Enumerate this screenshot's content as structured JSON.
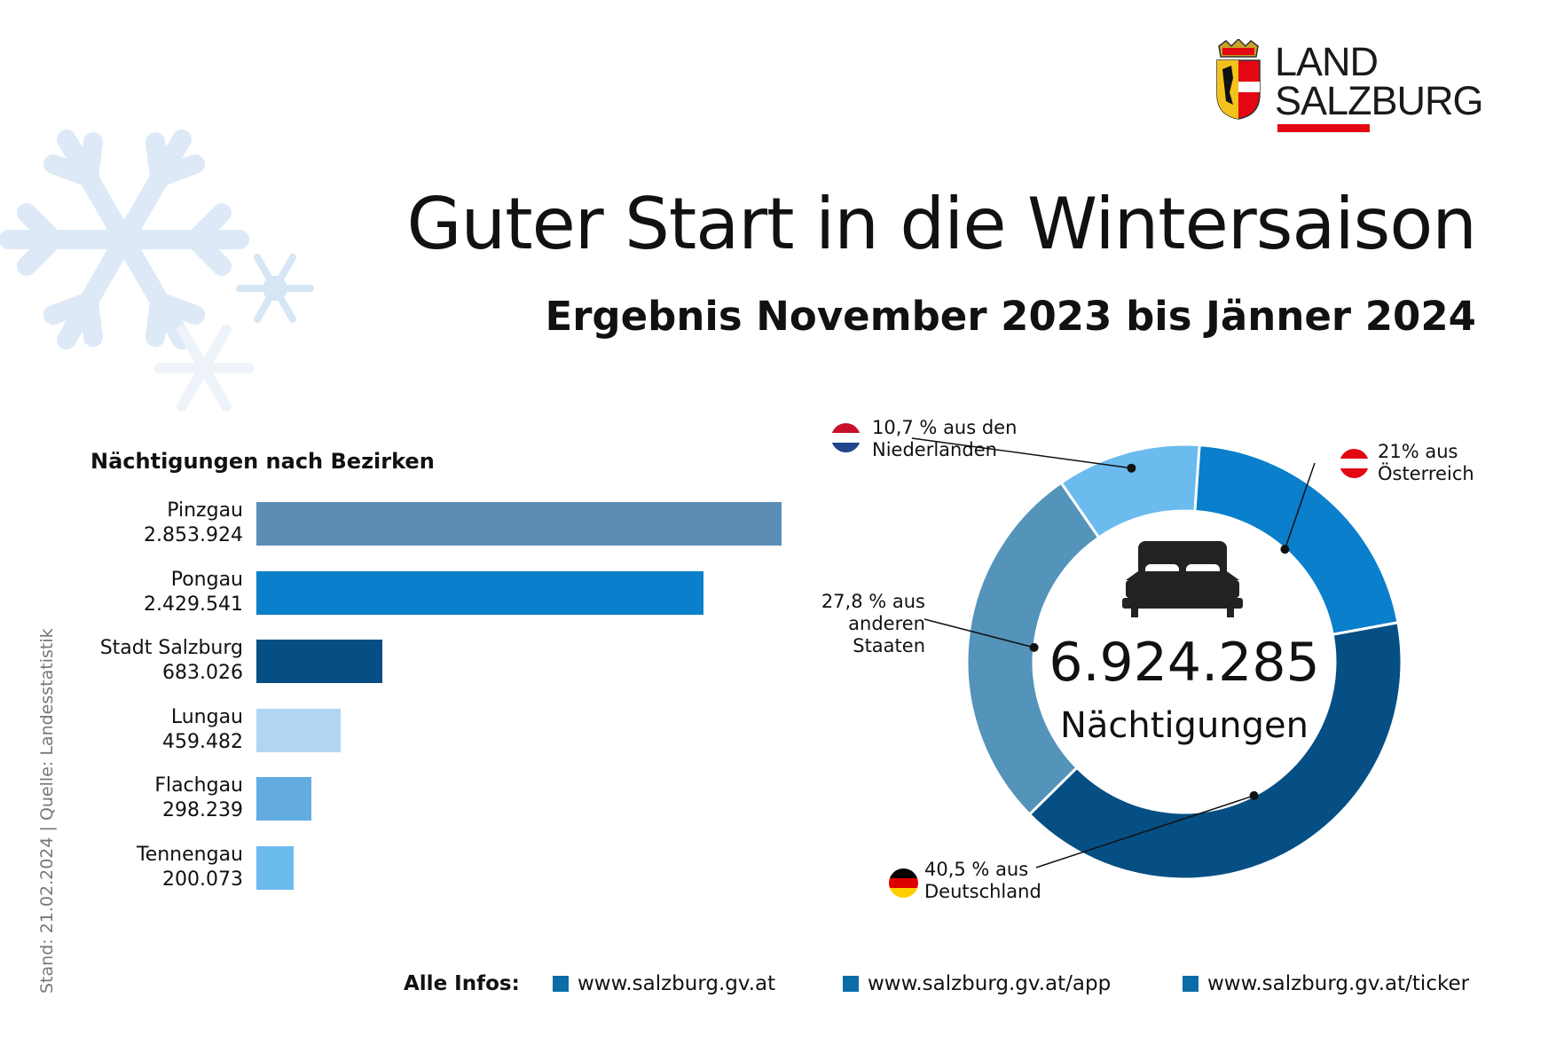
{
  "header": {
    "logo_line1": "LAND",
    "logo_line2": "SALZBURG",
    "title": "Guter Start in die Wintersaison",
    "subtitle": "Ergebnis November 2023 bis Jänner 2024"
  },
  "side_note": "Stand: 21.02.2024 | Quelle: Landesstatistik",
  "colors": {
    "brand_red": "#e30613",
    "bar_pinzgau": "#5c8db5",
    "bar_pongau": "#0a7fcb",
    "bar_stadt": "#054f84",
    "bar_lungau": "#b1d5f3",
    "bar_flachgau": "#62ace2",
    "bar_tennengau": "#6bbbee",
    "donut_oesterreich": "#0a7fcb",
    "donut_deutschland": "#054f84",
    "donut_andere": "#5493ba",
    "donut_niederlande": "#6bbbee",
    "footer_square": "#0b6ca8"
  },
  "chart_data": [
    {
      "type": "bar",
      "orientation": "horizontal",
      "title": "Nächtigungen nach Bezirken",
      "categories": [
        "Pinzgau",
        "Pongau",
        "Stadt Salzburg",
        "Lungau",
        "Flachgau",
        "Tennengau"
      ],
      "values": [
        2853924,
        2429541,
        683026,
        459482,
        298239,
        200073
      ],
      "value_labels": [
        "2.853.924",
        "2.429.541",
        "683.026",
        "459.482",
        "298.239",
        "200.073"
      ],
      "grid": false,
      "legend": "none"
    },
    {
      "type": "pie",
      "variant": "donut",
      "center_value": "6.924.285",
      "center_label": "Nächtigungen",
      "slices": [
        {
          "label": "21% aus Österreich",
          "value": 21.0
        },
        {
          "label": "40,5 % aus Deutschland",
          "value": 40.5
        },
        {
          "label": "27,8 % aus anderen Staaten",
          "value": 27.8
        },
        {
          "label": "10,7 % aus den Niederlanden",
          "value": 10.7
        }
      ]
    }
  ],
  "donut_labels": {
    "nl_line1": "10,7 % aus den",
    "nl_line2": "Niederlanden",
    "at_line1": "21% aus",
    "at_line2": "Österreich",
    "other_line1": "27,8 % aus",
    "other_line2": "anderen",
    "other_line3": "Staaten",
    "de_line1": "40,5 % aus",
    "de_line2": "Deutschland"
  },
  "footer": {
    "lead": "Alle Infos:",
    "links": [
      "www.salzburg.gv.at",
      "www.salzburg.gv.at/app",
      "www.salzburg.gv.at/ticker"
    ]
  }
}
